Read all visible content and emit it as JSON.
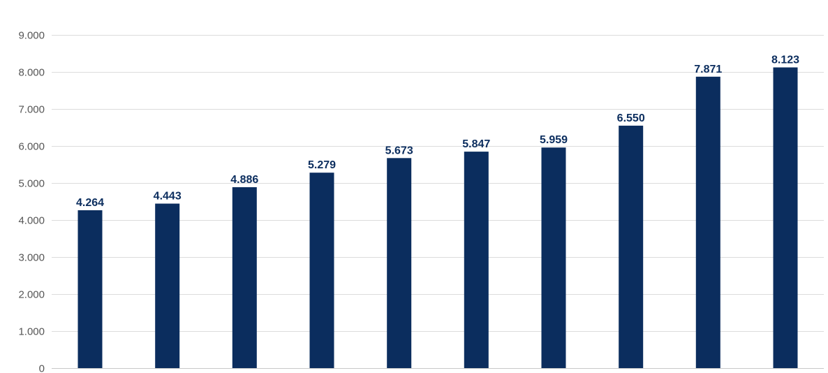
{
  "chart_data": {
    "type": "bar",
    "title": "",
    "xlabel": "",
    "ylabel": "",
    "categories": [
      "",
      "",
      "",
      "",
      "",
      "",
      "",
      "",
      "",
      ""
    ],
    "values": [
      4264,
      4443,
      4886,
      5279,
      5673,
      5847,
      5959,
      6550,
      7871,
      8123
    ],
    "value_labels": [
      "4.264",
      "4.443",
      "4.886",
      "5.279",
      "5.673",
      "5.847",
      "5.959",
      "6.550",
      "7.871",
      "8.123"
    ],
    "ylim": [
      0,
      9000
    ],
    "y_ticks": [
      0,
      1000,
      2000,
      3000,
      4000,
      5000,
      6000,
      7000,
      8000,
      9000
    ],
    "y_tick_labels": [
      "0",
      "1.000",
      "2.000",
      "3.000",
      "4.000",
      "5.000",
      "6.000",
      "7.000",
      "8.000",
      "9.000"
    ],
    "grid": true,
    "legend": "none",
    "bar_color": "#0b2d5e",
    "label_color": "#0b2d5e"
  }
}
